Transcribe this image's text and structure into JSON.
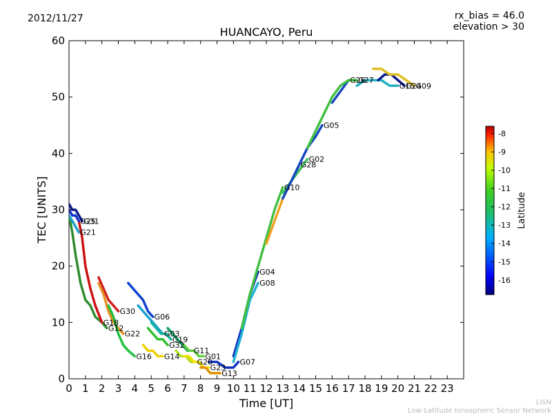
{
  "header": {
    "date": "2012/11/27",
    "rx_bias": "rx_bias = 46.0",
    "elevation": "elevation > 30"
  },
  "footer": {
    "org_short": "LISN",
    "org_full": "Low-Latitude Ionospheric Sensor Network"
  },
  "colorbar": {
    "label": "Latitude",
    "ticks": [
      "-8",
      "-9",
      "-10",
      "-11",
      "-12",
      "-13",
      "-14",
      "-15",
      "-16"
    ],
    "tick_values": [
      -8,
      -9,
      -10,
      -11,
      -12,
      -13,
      -14,
      -15,
      -16
    ],
    "range": [
      -16.8,
      -7.6
    ],
    "colors": [
      "#00007f",
      "#0000ff",
      "#007fff",
      "#00ffff",
      "#7fff7f",
      "#ffff00",
      "#ff7f00",
      "#ff0000",
      "#7f0000"
    ]
  },
  "chart_data": {
    "type": "line",
    "title": "HUANCAYO, Peru",
    "xlabel": "Time [UT]",
    "ylabel": "TEC [UNITS]",
    "xlim": [
      0,
      24
    ],
    "ylim": [
      0,
      60
    ],
    "xticks": [
      0,
      1,
      2,
      3,
      4,
      5,
      6,
      7,
      8,
      9,
      10,
      11,
      12,
      13,
      14,
      15,
      16,
      17,
      18,
      19,
      20,
      21,
      22,
      23
    ],
    "xtick_labels": [
      "0",
      "1",
      "2",
      "3",
      "4",
      "5",
      "6",
      "7",
      "8",
      "9",
      "10",
      "11",
      "12",
      "13",
      "14",
      "15",
      "16",
      "17",
      "18",
      "19",
      "20",
      "21",
      "22",
      "23"
    ],
    "yticks": [
      0,
      10,
      20,
      30,
      40,
      50,
      60
    ],
    "ytick_labels": [
      "0",
      "10",
      "20",
      "30",
      "40",
      "50",
      "60"
    ],
    "series": [
      {
        "name": "G12",
        "color": "#2e8b2e",
        "x": [
          0.0,
          0.2,
          0.4,
          0.7,
          1.0,
          1.3,
          1.6,
          2.0,
          2.3
        ],
        "y": [
          29,
          26,
          22,
          17,
          14,
          13,
          11,
          10,
          9
        ]
      },
      {
        "name": "G31",
        "color": "#0a1a8c",
        "x": [
          0.0,
          0.2,
          0.4,
          0.6,
          0.8
        ],
        "y": [
          31,
          30,
          30,
          29,
          28
        ]
      },
      {
        "name": "G18",
        "color": "#cc1111",
        "x": [
          0.6,
          0.8,
          1.0,
          1.3,
          1.6,
          2.0
        ],
        "y": [
          28,
          25,
          20,
          16,
          13,
          10
        ]
      },
      {
        "name": "G25",
        "color": "#1030d0",
        "x": [
          0.0,
          0.2,
          0.4,
          0.6
        ],
        "y": [
          30,
          29,
          29,
          28
        ]
      },
      {
        "name": "G21",
        "color": "#18a0c8",
        "x": [
          0.0,
          0.2,
          0.4,
          0.6
        ],
        "y": [
          29,
          28,
          27,
          26
        ]
      },
      {
        "name": "G30",
        "color": "#d02020",
        "x": [
          1.8,
          2.1,
          2.4,
          2.7,
          3.0
        ],
        "y": [
          18,
          16,
          14,
          13,
          12
        ]
      },
      {
        "name": "G22",
        "color": "#e89020",
        "x": [
          1.8,
          2.1,
          2.4,
          2.7,
          3.0,
          3.3
        ],
        "y": [
          17,
          15,
          12,
          10,
          9,
          8
        ]
      },
      {
        "name": "G16",
        "color": "#20c040",
        "x": [
          2.4,
          2.7,
          3.0,
          3.3,
          3.6,
          4.0
        ],
        "y": [
          13,
          11,
          8,
          6,
          5,
          4
        ]
      },
      {
        "name": "G06",
        "color": "#1040d0",
        "x": [
          3.6,
          3.9,
          4.2,
          4.5,
          4.8,
          5.1
        ],
        "y": [
          17,
          16,
          15,
          14,
          12,
          11
        ]
      },
      {
        "name": "G03",
        "color": "#18a0d0",
        "x": [
          4.2,
          4.5,
          4.8,
          5.1,
          5.4,
          5.7
        ],
        "y": [
          13,
          12,
          11,
          10,
          9,
          8
        ]
      },
      {
        "name": "G19",
        "color": "#18b0a0",
        "x": [
          5.0,
          5.3,
          5.6,
          5.9,
          6.2
        ],
        "y": [
          10,
          9,
          8,
          8,
          7
        ]
      },
      {
        "name": "G32",
        "color": "#30c030",
        "x": [
          4.8,
          5.1,
          5.4,
          5.7,
          6.0
        ],
        "y": [
          9,
          8,
          7,
          7,
          6
        ]
      },
      {
        "name": "G11",
        "color": "#10a060",
        "x": [
          6.0,
          6.3,
          6.6,
          6.9,
          7.2,
          7.5
        ],
        "y": [
          9,
          8,
          7,
          6,
          5,
          5
        ]
      },
      {
        "name": "G14",
        "color": "#f0d000",
        "x": [
          4.5,
          4.8,
          5.1,
          5.4,
          5.7
        ],
        "y": [
          6,
          5,
          5,
          4,
          4
        ]
      },
      {
        "name": "G01",
        "color": "#60d040",
        "x": [
          7.0,
          7.3,
          7.6,
          7.9,
          8.2
        ],
        "y": [
          6,
          5,
          5,
          4,
          4
        ]
      },
      {
        "name": "G20",
        "color": "#b0e020",
        "x": [
          6.5,
          6.8,
          7.1,
          7.4,
          7.7
        ],
        "y": [
          5,
          4,
          4,
          3,
          3
        ]
      },
      {
        "name": "G23",
        "color": "#f0e000",
        "x": [
          7.0,
          7.3,
          7.6,
          7.9,
          8.2,
          8.5
        ],
        "y": [
          4,
          4,
          3,
          3,
          2,
          2
        ]
      },
      {
        "name": "G13",
        "color": "#e09000",
        "x": [
          8.0,
          8.3,
          8.6,
          8.9,
          9.2
        ],
        "y": [
          2,
          2,
          1,
          1,
          1
        ]
      },
      {
        "name": "G07",
        "color": "#1030c0",
        "x": [
          8.5,
          9.0,
          9.5,
          10.0,
          10.3
        ],
        "y": [
          3,
          3,
          2,
          2,
          3
        ]
      },
      {
        "name": "G04",
        "color": "#1030c0",
        "x": [
          10.0,
          10.5,
          11.0,
          11.5
        ],
        "y": [
          4,
          9,
          15,
          19
        ]
      },
      {
        "name": "G08",
        "color": "#20b0d0",
        "x": [
          10.0,
          10.5,
          11.0,
          11.5
        ],
        "y": [
          3,
          8,
          14,
          17
        ]
      },
      {
        "name": "G10",
        "color": "#40c040",
        "x": [
          10.5,
          11.0,
          11.5,
          12.0,
          12.5,
          13.0
        ],
        "y": [
          9,
          15,
          20,
          25,
          30,
          34
        ]
      },
      {
        "name": "G28",
        "color": "#f0a020",
        "x": [
          12.0,
          12.5,
          13.0,
          13.5,
          14.0
        ],
        "y": [
          24,
          28,
          32,
          35,
          38
        ]
      },
      {
        "name": "G02",
        "color": "#40c060",
        "x": [
          13.0,
          13.5,
          14.0,
          14.5
        ],
        "y": [
          33,
          35,
          37,
          39
        ]
      },
      {
        "name": "G05",
        "color": "#1848c0",
        "x": [
          13.0,
          13.5,
          14.0,
          14.5,
          15.0,
          15.4
        ],
        "y": [
          32,
          35,
          38,
          41,
          43,
          45
        ]
      },
      {
        "name": "G26",
        "color": "#1848c0",
        "x": [
          16.0,
          16.5,
          17.0
        ],
        "y": [
          49,
          51,
          53
        ]
      },
      {
        "name": "G27",
        "color": "#40c040",
        "x": [
          14.5,
          15.0,
          15.5,
          16.0,
          16.5,
          17.0,
          17.5
        ],
        "y": [
          41,
          44,
          47,
          50,
          52,
          53,
          53
        ]
      },
      {
        "name": "G15",
        "color": "#20b0c0",
        "x": [
          17.5,
          18.0,
          18.5,
          19.0,
          19.5,
          20.0
        ],
        "y": [
          52,
          53,
          53,
          53,
          52,
          52
        ]
      },
      {
        "name": "G24",
        "color": "#0a1a8c",
        "x": [
          18.8,
          19.2,
          19.6,
          20.0,
          20.4
        ],
        "y": [
          53,
          54,
          54,
          53,
          52
        ]
      },
      {
        "name": "G09",
        "color": "#e0c020",
        "x": [
          18.5,
          19.0,
          19.5,
          20.0,
          20.5,
          21.0
        ],
        "y": [
          55,
          55,
          54,
          54,
          53,
          52
        ]
      }
    ],
    "annotations": [
      "G31",
      "G25",
      "G21",
      "G18",
      "G12",
      "G30",
      "G22",
      "G16",
      "G06",
      "G03",
      "G19",
      "G32",
      "G11",
      "G14",
      "G01",
      "G20",
      "G23",
      "G13",
      "G07",
      "G04",
      "G08",
      "G10",
      "G28",
      "G02",
      "G05",
      "G26",
      "G27",
      "G15",
      "G24",
      "G09"
    ]
  }
}
